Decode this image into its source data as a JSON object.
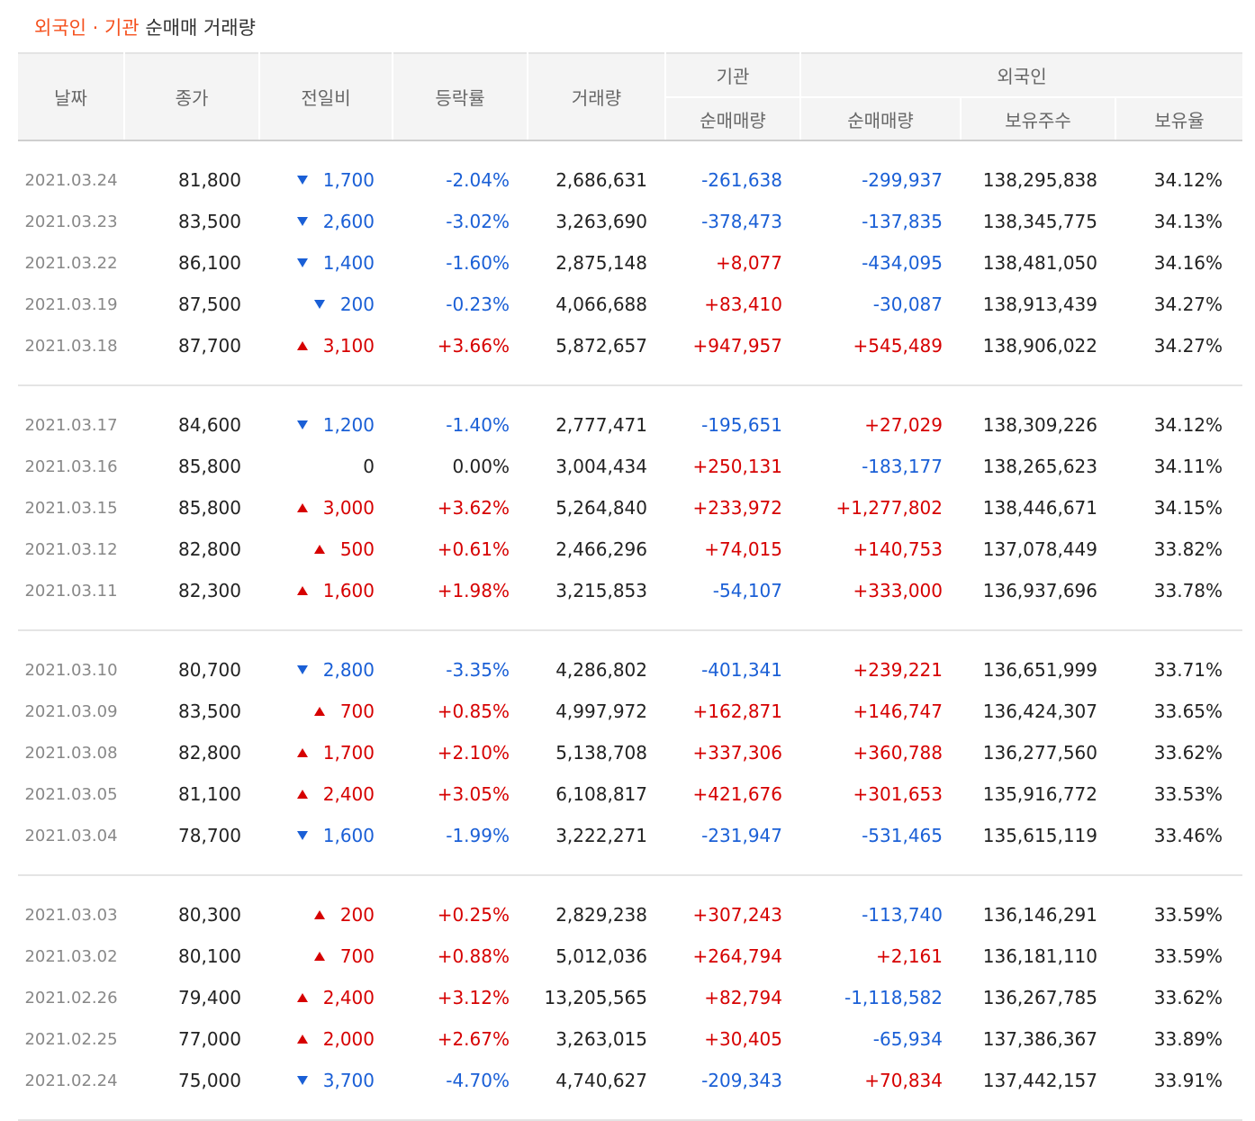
{
  "title": {
    "accent": "외국인 · 기관",
    "rest": "순매매 거래량"
  },
  "headers": {
    "date": "날짜",
    "close": "종가",
    "change": "전일비",
    "rate": "등락률",
    "volume": "거래량",
    "institution": "기관",
    "foreign": "외국인",
    "inst_net": "순매매량",
    "foreign_net": "순매매량",
    "holdings": "보유주수",
    "holding_ratio": "보유율"
  },
  "colors": {
    "up": "#d60000",
    "down": "#1a5fd6",
    "accent": "#f5511e"
  },
  "groups": [
    {
      "rows": [
        {
          "date": "2021.03.24",
          "close": "81,800",
          "dir": "down",
          "change": "1,700",
          "rate": "-2.04%",
          "volume": "2,686,631",
          "inst": "-261,638",
          "foreign": "-299,937",
          "holdings": "138,295,838",
          "ratio": "34.12%"
        },
        {
          "date": "2021.03.23",
          "close": "83,500",
          "dir": "down",
          "change": "2,600",
          "rate": "-3.02%",
          "volume": "3,263,690",
          "inst": "-378,473",
          "foreign": "-137,835",
          "holdings": "138,345,775",
          "ratio": "34.13%"
        },
        {
          "date": "2021.03.22",
          "close": "86,100",
          "dir": "down",
          "change": "1,400",
          "rate": "-1.60%",
          "volume": "2,875,148",
          "inst": "+8,077",
          "foreign": "-434,095",
          "holdings": "138,481,050",
          "ratio": "34.16%"
        },
        {
          "date": "2021.03.19",
          "close": "87,500",
          "dir": "down",
          "change": "200",
          "rate": "-0.23%",
          "volume": "4,066,688",
          "inst": "+83,410",
          "foreign": "-30,087",
          "holdings": "138,913,439",
          "ratio": "34.27%"
        },
        {
          "date": "2021.03.18",
          "close": "87,700",
          "dir": "up",
          "change": "3,100",
          "rate": "+3.66%",
          "volume": "5,872,657",
          "inst": "+947,957",
          "foreign": "+545,489",
          "holdings": "138,906,022",
          "ratio": "34.27%"
        }
      ]
    },
    {
      "rows": [
        {
          "date": "2021.03.17",
          "close": "84,600",
          "dir": "down",
          "change": "1,200",
          "rate": "-1.40%",
          "volume": "2,777,471",
          "inst": "-195,651",
          "foreign": "+27,029",
          "holdings": "138,309,226",
          "ratio": "34.12%"
        },
        {
          "date": "2021.03.16",
          "close": "85,800",
          "dir": "flat",
          "change": "0",
          "rate": "0.00%",
          "volume": "3,004,434",
          "inst": "+250,131",
          "foreign": "-183,177",
          "holdings": "138,265,623",
          "ratio": "34.11%"
        },
        {
          "date": "2021.03.15",
          "close": "85,800",
          "dir": "up",
          "change": "3,000",
          "rate": "+3.62%",
          "volume": "5,264,840",
          "inst": "+233,972",
          "foreign": "+1,277,802",
          "holdings": "138,446,671",
          "ratio": "34.15%"
        },
        {
          "date": "2021.03.12",
          "close": "82,800",
          "dir": "up",
          "change": "500",
          "rate": "+0.61%",
          "volume": "2,466,296",
          "inst": "+74,015",
          "foreign": "+140,753",
          "holdings": "137,078,449",
          "ratio": "33.82%"
        },
        {
          "date": "2021.03.11",
          "close": "82,300",
          "dir": "up",
          "change": "1,600",
          "rate": "+1.98%",
          "volume": "3,215,853",
          "inst": "-54,107",
          "foreign": "+333,000",
          "holdings": "136,937,696",
          "ratio": "33.78%"
        }
      ]
    },
    {
      "rows": [
        {
          "date": "2021.03.10",
          "close": "80,700",
          "dir": "down",
          "change": "2,800",
          "rate": "-3.35%",
          "volume": "4,286,802",
          "inst": "-401,341",
          "foreign": "+239,221",
          "holdings": "136,651,999",
          "ratio": "33.71%"
        },
        {
          "date": "2021.03.09",
          "close": "83,500",
          "dir": "up",
          "change": "700",
          "rate": "+0.85%",
          "volume": "4,997,972",
          "inst": "+162,871",
          "foreign": "+146,747",
          "holdings": "136,424,307",
          "ratio": "33.65%"
        },
        {
          "date": "2021.03.08",
          "close": "82,800",
          "dir": "up",
          "change": "1,700",
          "rate": "+2.10%",
          "volume": "5,138,708",
          "inst": "+337,306",
          "foreign": "+360,788",
          "holdings": "136,277,560",
          "ratio": "33.62%"
        },
        {
          "date": "2021.03.05",
          "close": "81,100",
          "dir": "up",
          "change": "2,400",
          "rate": "+3.05%",
          "volume": "6,108,817",
          "inst": "+421,676",
          "foreign": "+301,653",
          "holdings": "135,916,772",
          "ratio": "33.53%"
        },
        {
          "date": "2021.03.04",
          "close": "78,700",
          "dir": "down",
          "change": "1,600",
          "rate": "-1.99%",
          "volume": "3,222,271",
          "inst": "-231,947",
          "foreign": "-531,465",
          "holdings": "135,615,119",
          "ratio": "33.46%"
        }
      ]
    },
    {
      "rows": [
        {
          "date": "2021.03.03",
          "close": "80,300",
          "dir": "up",
          "change": "200",
          "rate": "+0.25%",
          "volume": "2,829,238",
          "inst": "+307,243",
          "foreign": "-113,740",
          "holdings": "136,146,291",
          "ratio": "33.59%"
        },
        {
          "date": "2021.03.02",
          "close": "80,100",
          "dir": "up",
          "change": "700",
          "rate": "+0.88%",
          "volume": "5,012,036",
          "inst": "+264,794",
          "foreign": "+2,161",
          "holdings": "136,181,110",
          "ratio": "33.59%"
        },
        {
          "date": "2021.02.26",
          "close": "79,400",
          "dir": "up",
          "change": "2,400",
          "rate": "+3.12%",
          "volume": "13,205,565",
          "inst": "+82,794",
          "foreign": "-1,118,582",
          "holdings": "136,267,785",
          "ratio": "33.62%"
        },
        {
          "date": "2021.02.25",
          "close": "77,000",
          "dir": "up",
          "change": "2,000",
          "rate": "+2.67%",
          "volume": "3,263,015",
          "inst": "+30,405",
          "foreign": "-65,934",
          "holdings": "137,386,367",
          "ratio": "33.89%"
        },
        {
          "date": "2021.02.24",
          "close": "75,000",
          "dir": "down",
          "change": "3,700",
          "rate": "-4.70%",
          "volume": "4,740,627",
          "inst": "-209,343",
          "foreign": "+70,834",
          "holdings": "137,442,157",
          "ratio": "33.91%"
        }
      ]
    }
  ]
}
